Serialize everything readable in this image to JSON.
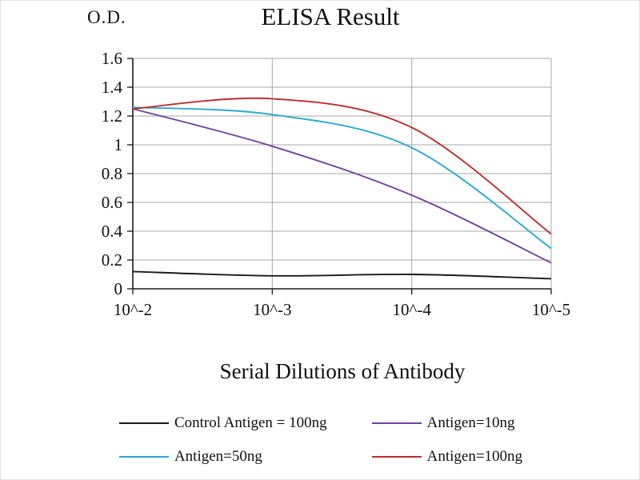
{
  "chart_data": {
    "type": "line",
    "title": "ELISA Result",
    "ylabel": "O.D.",
    "xlabel": "Serial Dilutions of Antibody",
    "x_tick_labels": [
      "10^-2",
      "10^-3",
      "10^-4",
      "10^-5"
    ],
    "y_ticks": [
      0,
      0.2,
      0.4,
      0.6,
      0.8,
      1,
      1.2,
      1.4,
      1.6
    ],
    "ylim": [
      0,
      1.6
    ],
    "grid": true,
    "legend_position": "bottom",
    "gridline_color": "#a9a9a9",
    "axis_color": "#1a1a1a",
    "series": [
      {
        "name": "Control Antigen = 100ng",
        "color": "#1a1a1a",
        "values": [
          0.12,
          0.09,
          0.1,
          0.07
        ]
      },
      {
        "name": "Antigen=10ng",
        "color": "#7141a1",
        "values": [
          1.25,
          0.99,
          0.65,
          0.18
        ]
      },
      {
        "name": "Antigen=50ng",
        "color": "#29abd4",
        "values": [
          1.26,
          1.21,
          0.98,
          0.28
        ]
      },
      {
        "name": "Antigen=100ng",
        "color": "#bf2e2e",
        "values": [
          1.25,
          1.32,
          1.12,
          0.38
        ]
      }
    ]
  }
}
